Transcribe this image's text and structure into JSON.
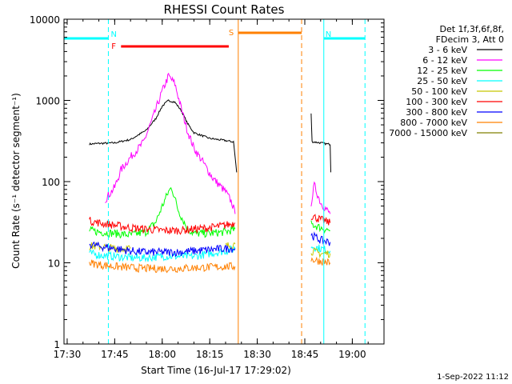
{
  "chart_data": {
    "type": "line",
    "title": "RHESSI Count Rates",
    "xlabel": "Start Time (16-Jul-17 17:29:02)",
    "ylabel": "Count Rate (s⁻¹ detector segment⁻¹)",
    "yscale": "log",
    "ylim": [
      1,
      10000
    ],
    "xlim": [
      "17:29",
      "19:10"
    ],
    "x_ticks": [
      "17:30",
      "17:45",
      "18:00",
      "18:15",
      "18:30",
      "18:45",
      "19:00"
    ],
    "y_ticks": [
      "1",
      "10",
      "100",
      "1000",
      "10000"
    ],
    "legend": {
      "placement": "top-right, outside plot",
      "header": [
        "Det 1f,3f,6f,8f,",
        "FDecim 3, Att 0"
      ]
    },
    "series": [
      {
        "name": "3 - 6 keV",
        "color": "#000000",
        "points": [
          [
            "17:37",
            290
          ],
          [
            "17:40",
            295
          ],
          [
            "17:45",
            300
          ],
          [
            "17:50",
            330
          ],
          [
            "17:55",
            430
          ],
          [
            "17:58",
            600
          ],
          [
            "18:00",
            850
          ],
          [
            "18:02",
            1000
          ],
          [
            "18:04",
            950
          ],
          [
            "18:06",
            750
          ],
          [
            "18:08",
            520
          ],
          [
            "18:10",
            400
          ],
          [
            "18:15",
            340
          ],
          [
            "18:20",
            320
          ],
          [
            "18:22",
            310
          ],
          [
            "18:22.5",
            310
          ],
          [
            "18:23",
            200
          ],
          [
            "18:23.5",
            130
          ],
          [
            "18:47",
            680
          ],
          [
            "18:47.3",
            310
          ],
          [
            "18:50",
            300
          ],
          [
            "18:52",
            290
          ],
          [
            "18:53",
            290
          ],
          [
            "18:53.2",
            130
          ]
        ]
      },
      {
        "name": "6 - 12 keV",
        "color": "#ff00ff",
        "points": [
          [
            "17:42",
            60
          ],
          [
            "17:45",
            85
          ],
          [
            "17:47",
            140
          ],
          [
            "17:50",
            200
          ],
          [
            "17:54",
            300
          ],
          [
            "17:57",
            600
          ],
          [
            "18:00",
            1300
          ],
          [
            "18:02",
            2000
          ],
          [
            "18:04",
            1600
          ],
          [
            "18:06",
            800
          ],
          [
            "18:08",
            420
          ],
          [
            "18:10",
            260
          ],
          [
            "18:13",
            170
          ],
          [
            "18:16",
            110
          ],
          [
            "18:20",
            75
          ],
          [
            "18:22",
            55
          ],
          [
            "18:23",
            40
          ],
          [
            "18:47",
            55
          ],
          [
            "18:48",
            90
          ],
          [
            "18:50",
            55
          ],
          [
            "18:53",
            40
          ]
        ]
      },
      {
        "name": "12 - 25 keV",
        "color": "#00ff00",
        "points": [
          [
            "17:37",
            25
          ],
          [
            "17:40",
            24
          ],
          [
            "17:45",
            23
          ],
          [
            "17:50",
            22
          ],
          [
            "17:55",
            24
          ],
          [
            "17:58",
            32
          ],
          [
            "18:00",
            50
          ],
          [
            "18:02",
            75
          ],
          [
            "18:03",
            85
          ],
          [
            "18:05",
            45
          ],
          [
            "18:08",
            26
          ],
          [
            "18:10",
            23
          ],
          [
            "18:15",
            23
          ],
          [
            "18:20",
            24
          ],
          [
            "18:23",
            26
          ],
          [
            "18:47",
            30
          ],
          [
            "18:50",
            27
          ],
          [
            "18:53",
            25
          ]
        ]
      },
      {
        "name": "25 - 50 keV",
        "color": "#00ffff",
        "points": [
          [
            "17:37",
            13
          ],
          [
            "17:40",
            12.5
          ],
          [
            "17:45",
            12
          ],
          [
            "17:50",
            11.5
          ],
          [
            "17:55",
            11.5
          ],
          [
            "18:00",
            12
          ],
          [
            "18:05",
            12
          ],
          [
            "18:10",
            12
          ],
          [
            "18:15",
            13
          ],
          [
            "18:20",
            14
          ],
          [
            "18:23",
            15
          ],
          [
            "18:47",
            16
          ],
          [
            "18:50",
            15
          ],
          [
            "18:53",
            14
          ]
        ]
      },
      {
        "name": "50 - 100 keV",
        "color": "#c8c800",
        "points": [
          [
            "17:37",
            16
          ],
          [
            "17:40",
            16
          ],
          [
            "17:45",
            15
          ],
          [
            "17:50",
            15
          ],
          [
            "18:00",
            15
          ],
          [
            "18:10",
            15
          ],
          [
            "18:20",
            16
          ],
          [
            "18:23",
            17
          ],
          [
            "18:47",
            14
          ],
          [
            "18:50",
            13
          ],
          [
            "18:53",
            13
          ]
        ]
      },
      {
        "name": "100 - 300 keV",
        "color": "#ff0000",
        "points": [
          [
            "17:37",
            33
          ],
          [
            "17:40",
            31
          ],
          [
            "17:45",
            29
          ],
          [
            "17:50",
            27
          ],
          [
            "17:55",
            26
          ],
          [
            "18:00",
            25
          ],
          [
            "18:05",
            25
          ],
          [
            "18:10",
            26
          ],
          [
            "18:15",
            27
          ],
          [
            "18:20",
            29
          ],
          [
            "18:23",
            31
          ],
          [
            "18:47",
            38
          ],
          [
            "18:50",
            34
          ],
          [
            "18:53",
            31
          ]
        ]
      },
      {
        "name": "300 - 800 keV",
        "color": "#0000ff",
        "points": [
          [
            "17:37",
            17
          ],
          [
            "17:40",
            16
          ],
          [
            "17:45",
            15
          ],
          [
            "17:50",
            14
          ],
          [
            "17:55",
            13.5
          ],
          [
            "18:00",
            13.5
          ],
          [
            "18:05",
            13.5
          ],
          [
            "18:10",
            14
          ],
          [
            "18:15",
            14.5
          ],
          [
            "18:20",
            15
          ],
          [
            "18:23",
            15
          ],
          [
            "18:47",
            22
          ],
          [
            "18:50",
            19
          ],
          [
            "18:53",
            18
          ]
        ]
      },
      {
        "name": "800 - 7000 keV",
        "color": "#ff8000",
        "points": [
          [
            "17:37",
            10
          ],
          [
            "17:40",
            9.5
          ],
          [
            "17:45",
            9
          ],
          [
            "17:50",
            8.7
          ],
          [
            "17:55",
            8.5
          ],
          [
            "18:00",
            8.5
          ],
          [
            "18:05",
            8.5
          ],
          [
            "18:10",
            8.7
          ],
          [
            "18:15",
            8.8
          ],
          [
            "18:20",
            9
          ],
          [
            "18:23",
            9
          ],
          [
            "18:47",
            11
          ],
          [
            "18:50",
            10.5
          ],
          [
            "18:53",
            10
          ]
        ]
      },
      {
        "name": "7000 - 15000 keV",
        "color": "#808000",
        "points": []
      }
    ],
    "annotations": [
      {
        "label": "N",
        "color": "#00ffff",
        "start": "17:29",
        "end": "17:43"
      },
      {
        "label": "N",
        "color": "#00ffff",
        "start": "18:51",
        "end": "19:04"
      },
      {
        "label": "F",
        "color": "#ff0000",
        "start": "17:47",
        "end": "18:21"
      },
      {
        "label": "S",
        "color": "#ff8000",
        "start": "18:24",
        "end": "18:44"
      }
    ],
    "footer_timestamp": "1-Sep-2022 11:12"
  }
}
